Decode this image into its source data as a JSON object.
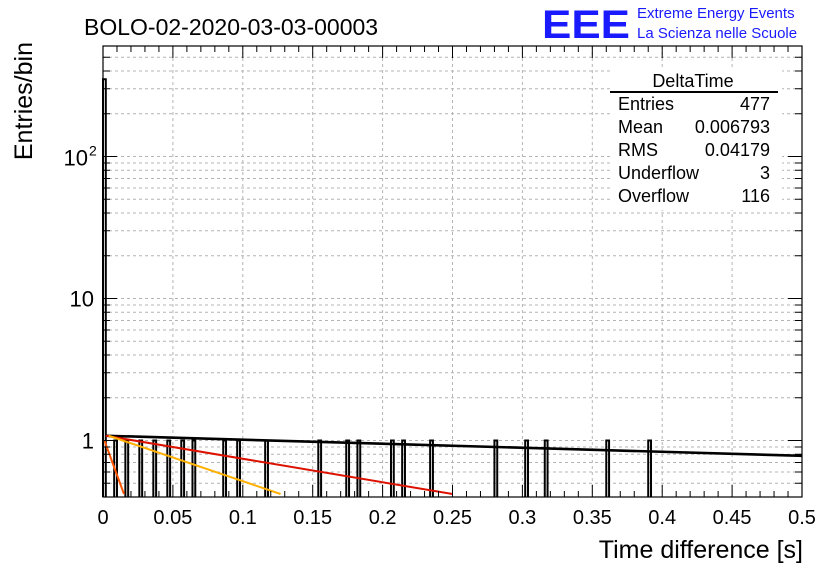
{
  "header": {
    "run_title": "BOLO-02-2020-03-03-00003",
    "logo_text": "EEE",
    "logo_line1": "Extreme Energy Events",
    "logo_line2": "La Scienza nelle Scuole"
  },
  "stats_box": {
    "title": "DeltaTime",
    "rows": [
      {
        "label": "Entries",
        "value": "477"
      },
      {
        "label": "Mean",
        "value": "0.006793"
      },
      {
        "label": "RMS",
        "value": "0.04179"
      },
      {
        "label": "Underflow",
        "value": "3"
      },
      {
        "label": "Overflow",
        "value": "116"
      }
    ]
  },
  "colors": {
    "logo_blue": "#1a1aff",
    "histogram": "#000000",
    "fit_black": "#000000",
    "fit_red": "#dd1100",
    "fit_orange": "#ffb000",
    "fit_darkorange": "#ff5500",
    "grid": "#b4b4b4"
  },
  "chart_data": {
    "type": "bar",
    "ylabel": "Entries/bin",
    "xlabel": "Time difference [s]",
    "xlim": [
      0,
      0.5
    ],
    "ylim": [
      0.4,
      600
    ],
    "log_y": true,
    "grid": true,
    "bin_width": 0.002,
    "x_ticks": [
      "0",
      "0.05",
      "0.1",
      "0.15",
      "0.2",
      "0.25",
      "0.3",
      "0.35",
      "0.4",
      "0.45",
      "0.5"
    ],
    "y_ticks": [
      {
        "value": 1,
        "label": "1"
      },
      {
        "value": 10,
        "label": "10"
      },
      {
        "value": 100,
        "label": "10",
        "sup": "2"
      }
    ],
    "bins": [
      {
        "x": 0.0,
        "value": 350
      },
      {
        "x": 0.008,
        "value": 1
      },
      {
        "x": 0.016,
        "value": 1
      },
      {
        "x": 0.026,
        "value": 1
      },
      {
        "x": 0.036,
        "value": 1
      },
      {
        "x": 0.046,
        "value": 1
      },
      {
        "x": 0.056,
        "value": 1
      },
      {
        "x": 0.064,
        "value": 1
      },
      {
        "x": 0.086,
        "value": 1
      },
      {
        "x": 0.096,
        "value": 1
      },
      {
        "x": 0.116,
        "value": 1
      },
      {
        "x": 0.154,
        "value": 1
      },
      {
        "x": 0.174,
        "value": 1
      },
      {
        "x": 0.182,
        "value": 1
      },
      {
        "x": 0.206,
        "value": 1
      },
      {
        "x": 0.214,
        "value": 1
      },
      {
        "x": 0.234,
        "value": 1
      },
      {
        "x": 0.28,
        "value": 1
      },
      {
        "x": 0.302,
        "value": 1
      },
      {
        "x": 0.316,
        "value": 1
      },
      {
        "x": 0.36,
        "value": 1
      },
      {
        "x": 0.39,
        "value": 1
      }
    ],
    "fits": [
      {
        "color": "#000000",
        "x": [
          0.002,
          0.5
        ],
        "y": [
          1.08,
          0.78
        ]
      },
      {
        "color": "#dd1100",
        "x": [
          0.002,
          0.25
        ],
        "y": [
          1.08,
          0.42
        ]
      },
      {
        "color": "#ffb000",
        "x": [
          0.004,
          0.127
        ],
        "y": [
          1.08,
          0.42
        ]
      },
      {
        "color": "#ff5500",
        "x": [
          0.001,
          0.015
        ],
        "y": [
          1.0,
          0.42
        ]
      }
    ]
  }
}
